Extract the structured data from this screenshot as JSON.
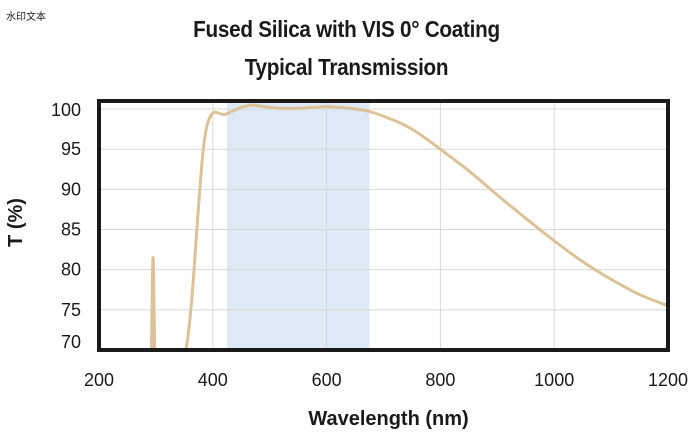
{
  "watermark": "水印文本",
  "chart_data": {
    "type": "line",
    "title": "Fused Silica with VIS 0° Coating",
    "subtitle": "Typical Transmission",
    "xlabel": "Wavelength (nm)",
    "ylabel": "T (%)",
    "xlim": [
      200,
      1200
    ],
    "ylim": [
      70,
      101
    ],
    "xticks": [
      200,
      400,
      600,
      800,
      1000,
      1200
    ],
    "yticks": [
      100,
      95,
      90,
      85,
      80,
      75,
      70
    ],
    "grid": true,
    "design_band": [
      425,
      675
    ],
    "colors": {
      "line": "#dcc298",
      "band": "#ddeaf6",
      "grid": "#d8d8d8",
      "frame": "#1a1a1a"
    },
    "series": [
      {
        "segments": [
          {
            "x": [
              292,
              293,
              294,
              295,
              296,
              297,
              298
            ],
            "y": [
              69,
              74,
              79.5,
              81.5,
              79.5,
              74,
              69
            ]
          },
          {
            "x": [
              350,
              355,
              360,
              365,
              370,
              375,
              380,
              385,
              390,
              395,
              400,
              405,
              410,
              420,
              430,
              440,
              450,
              460,
              470,
              480,
              490,
              500,
              520,
              550,
              575,
              600,
              625,
              650,
              675,
              700,
              725,
              750,
              775,
              800,
              850,
              900,
              950,
              1000,
              1050,
              1100,
              1150,
              1200
            ],
            "y": [
              69,
              71,
              74,
              78,
              83,
              88,
              92.5,
              96,
              98,
              99,
              99.5,
              99.6,
              99.5,
              99.3,
              99.6,
              99.9,
              100.2,
              100.4,
              100.5,
              100.4,
              100.3,
              100.2,
              100.1,
              100.1,
              100.2,
              100.3,
              100.2,
              100.0,
              99.7,
              99.1,
              98.4,
              97.5,
              96.3,
              95.0,
              92.3,
              89.3,
              86.4,
              83.6,
              81.0,
              78.8,
              76.9,
              75.5
            ]
          }
        ]
      }
    ]
  }
}
